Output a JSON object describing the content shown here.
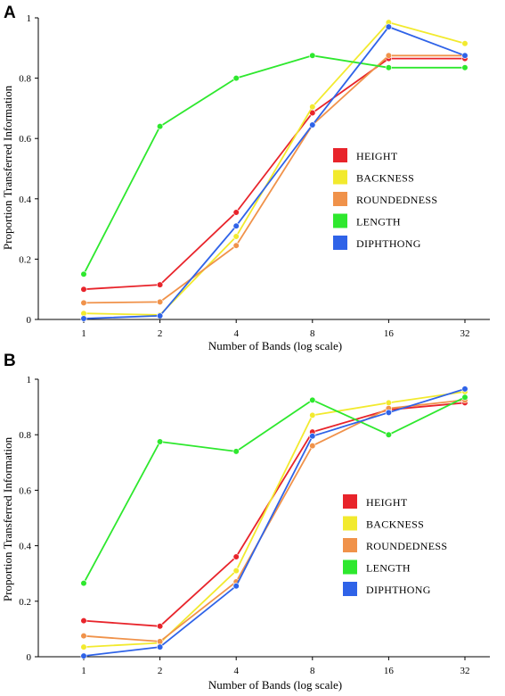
{
  "chart_data": [
    {
      "panel": "A",
      "type": "line",
      "x": [
        1,
        2,
        4,
        8,
        16,
        32
      ],
      "xlabel": "Number of Bands (log scale)",
      "ylabel": "Proportion Transferred Information",
      "ylim": [
        0,
        1
      ],
      "yticks": [
        "0",
        "0.2",
        "0.4",
        "0.6",
        "0.8",
        "1"
      ],
      "xticks": [
        "1",
        "2",
        "4",
        "8",
        "16",
        "32"
      ],
      "xscale": "log",
      "grid": false,
      "legend_position": "center-right",
      "series": [
        {
          "name": "HEIGHT",
          "color": "#e8242b",
          "values": [
            0.1,
            0.115,
            0.355,
            0.685,
            0.865,
            0.865
          ]
        },
        {
          "name": "BACKNESS",
          "color": "#f2ea2e",
          "values": [
            0.02,
            0.015,
            0.275,
            0.705,
            0.985,
            0.915
          ]
        },
        {
          "name": "ROUNDEDNESS",
          "color": "#f0924a",
          "values": [
            0.055,
            0.058,
            0.245,
            0.645,
            0.875,
            0.875
          ]
        },
        {
          "name": "LENGTH",
          "color": "#2ee82e",
          "values": [
            0.15,
            0.64,
            0.8,
            0.875,
            0.835,
            0.835
          ]
        },
        {
          "name": "DIPHTHONG",
          "color": "#2f63e8",
          "values": [
            0.003,
            0.012,
            0.31,
            0.645,
            0.97,
            0.875
          ]
        }
      ]
    },
    {
      "panel": "B",
      "type": "line",
      "x": [
        1,
        2,
        4,
        8,
        16,
        32
      ],
      "xlabel": "Number of Bands (log scale)",
      "ylabel": "Proportion Transferred Information",
      "ylim": [
        0,
        1
      ],
      "yticks": [
        "0",
        "0.2",
        "0.4",
        "0.6",
        "0.8",
        "1"
      ],
      "xticks": [
        "1",
        "2",
        "4",
        "8",
        "16",
        "32"
      ],
      "xscale": "log",
      "grid": false,
      "legend_position": "center-right",
      "series": [
        {
          "name": "HEIGHT",
          "color": "#e8242b",
          "values": [
            0.13,
            0.11,
            0.36,
            0.81,
            0.89,
            0.915
          ]
        },
        {
          "name": "BACKNESS",
          "color": "#f2ea2e",
          "values": [
            0.035,
            0.05,
            0.31,
            0.87,
            0.915,
            0.955
          ]
        },
        {
          "name": "ROUNDEDNESS",
          "color": "#f0924a",
          "values": [
            0.075,
            0.055,
            0.27,
            0.76,
            0.895,
            0.925
          ]
        },
        {
          "name": "LENGTH",
          "color": "#2ee82e",
          "values": [
            0.265,
            0.775,
            0.74,
            0.925,
            0.8,
            0.935
          ]
        },
        {
          "name": "DIPHTHONG",
          "color": "#2f63e8",
          "values": [
            0.003,
            0.035,
            0.255,
            0.795,
            0.88,
            0.965
          ]
        }
      ]
    }
  ]
}
